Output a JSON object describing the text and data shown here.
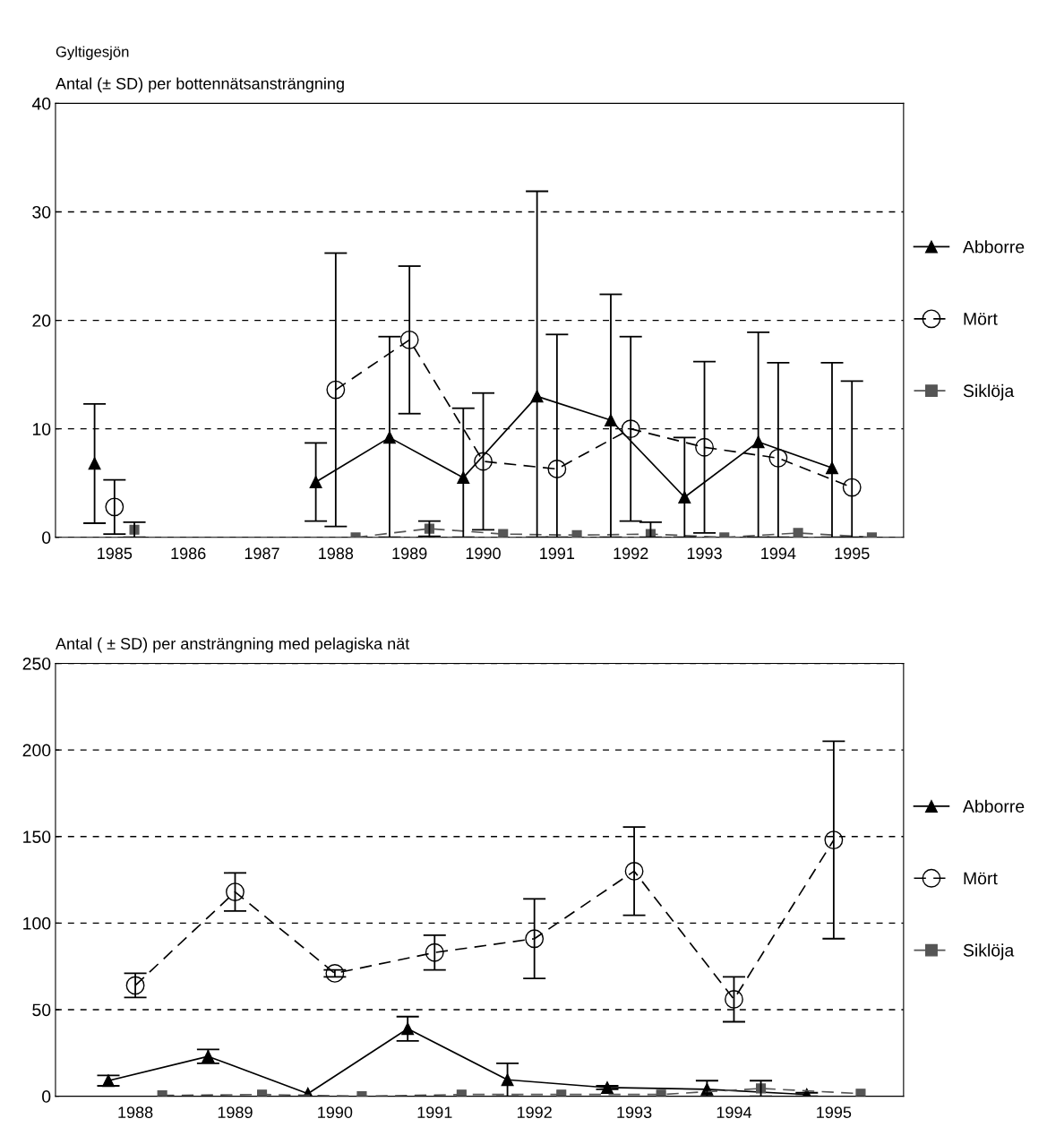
{
  "chart_data": [
    {
      "type": "line",
      "title": "Gyltigesjön",
      "ylabel": "Antal (± SD) per bottennätsansträngning",
      "xlim": [
        1984.2,
        1995.7
      ],
      "xticks": [
        1985,
        1986,
        1987,
        1988,
        1989,
        1990,
        1991,
        1992,
        1993,
        1994,
        1995
      ],
      "ylim": [
        0,
        40
      ],
      "yticks": [
        0,
        10,
        20,
        30,
        40
      ],
      "grid": "y",
      "legend": "right",
      "series": [
        {
          "name": "Abborre",
          "color": "#000000",
          "marker": "triangle",
          "line_style": "solid",
          "x": [
            1984.73,
            1985.73,
            1986.73,
            1987.73,
            1988.73,
            1989.73,
            1990.73,
            1991.73,
            1992.73,
            1993.73,
            1994.73
          ],
          "values": [
            6.8,
            null,
            null,
            5.1,
            9.2,
            5.5,
            13.0,
            10.8,
            3.7,
            8.8,
            6.4
          ],
          "errors": [
            5.5,
            null,
            null,
            3.6,
            [
              0,
              18.5
            ],
            [
              0,
              11.9
            ],
            [
              0,
              31.9
            ],
            [
              0,
              22.4
            ],
            [
              0,
              9.2
            ],
            [
              0,
              18.9
            ],
            [
              0,
              16.1
            ]
          ]
        },
        {
          "name": "Mört",
          "color": "#000000",
          "marker": "circle",
          "line_style": "dashed",
          "x": [
            1985,
            1986,
            1987,
            1988,
            1989,
            1990,
            1991,
            1992,
            1993,
            1994,
            1995
          ],
          "values": [
            2.8,
            null,
            null,
            13.6,
            18.2,
            7.0,
            6.3,
            10.0,
            8.3,
            7.3,
            4.6
          ],
          "errors": [
            2.5,
            null,
            null,
            12.6,
            6.8,
            6.3,
            [
              0,
              18.7
            ],
            8.5,
            7.9,
            [
              0,
              16.1
            ],
            [
              0,
              14.4
            ]
          ]
        },
        {
          "name": "Siklöja",
          "color": "#555555",
          "marker": "square",
          "line_style": "dashed",
          "x": [
            1985.27,
            1986.27,
            1987.27,
            1988.27,
            1989.27,
            1990.27,
            1991.27,
            1992.27,
            1993.27,
            1994.27,
            1995.27
          ],
          "values": [
            0.7,
            null,
            null,
            0,
            0.8,
            0.3,
            0.2,
            0.3,
            0,
            0.4,
            0
          ],
          "errors": [
            0.7,
            null,
            null,
            null,
            0.7,
            null,
            null,
            [
              0,
              1.4
            ],
            null,
            null,
            null
          ]
        }
      ]
    },
    {
      "type": "line",
      "ylabel": "Antal ( ± SD) per ansträngning med pelagiska nät",
      "xlim": [
        1987.2,
        1995.7
      ],
      "xticks": [
        1988,
        1989,
        1990,
        1991,
        1992,
        1993,
        1994,
        1995
      ],
      "ylim": [
        0,
        250
      ],
      "yticks": [
        0,
        50,
        100,
        150,
        200,
        250
      ],
      "grid": "y",
      "legend": "right",
      "series": [
        {
          "name": "Abborre",
          "color": "#000000",
          "marker": "triangle",
          "line_style": "solid",
          "x": [
            1987.73,
            1988.73,
            1989.73,
            1990.73,
            1991.73,
            1992.73,
            1993.73,
            1994.73
          ],
          "values": [
            9,
            23,
            1.5,
            39,
            9.5,
            5,
            4,
            1
          ],
          "errors": [
            3,
            4,
            null,
            7,
            9.5,
            1,
            5,
            1
          ]
        },
        {
          "name": "Mört",
          "color": "#000000",
          "marker": "circle",
          "line_style": "dashed",
          "x": [
            1988,
            1989,
            1990,
            1991,
            1992,
            1993,
            1994,
            1995
          ],
          "values": [
            64,
            118,
            71,
            83,
            91,
            130,
            56,
            148
          ],
          "errors": [
            7,
            11,
            2,
            10,
            23,
            25.5,
            13,
            57
          ]
        },
        {
          "name": "Siklöja",
          "color": "#555555",
          "marker": "square",
          "line_style": "dashed",
          "x": [
            1988.27,
            1989.27,
            1990.27,
            1991.27,
            1992.27,
            1993.27,
            1994.27,
            1995.27
          ],
          "values": [
            0.5,
            1,
            0,
            1,
            1,
            1,
            4.5,
            1.5
          ],
          "errors": [
            null,
            null,
            null,
            null,
            null,
            null,
            4.5,
            null
          ]
        }
      ]
    }
  ]
}
